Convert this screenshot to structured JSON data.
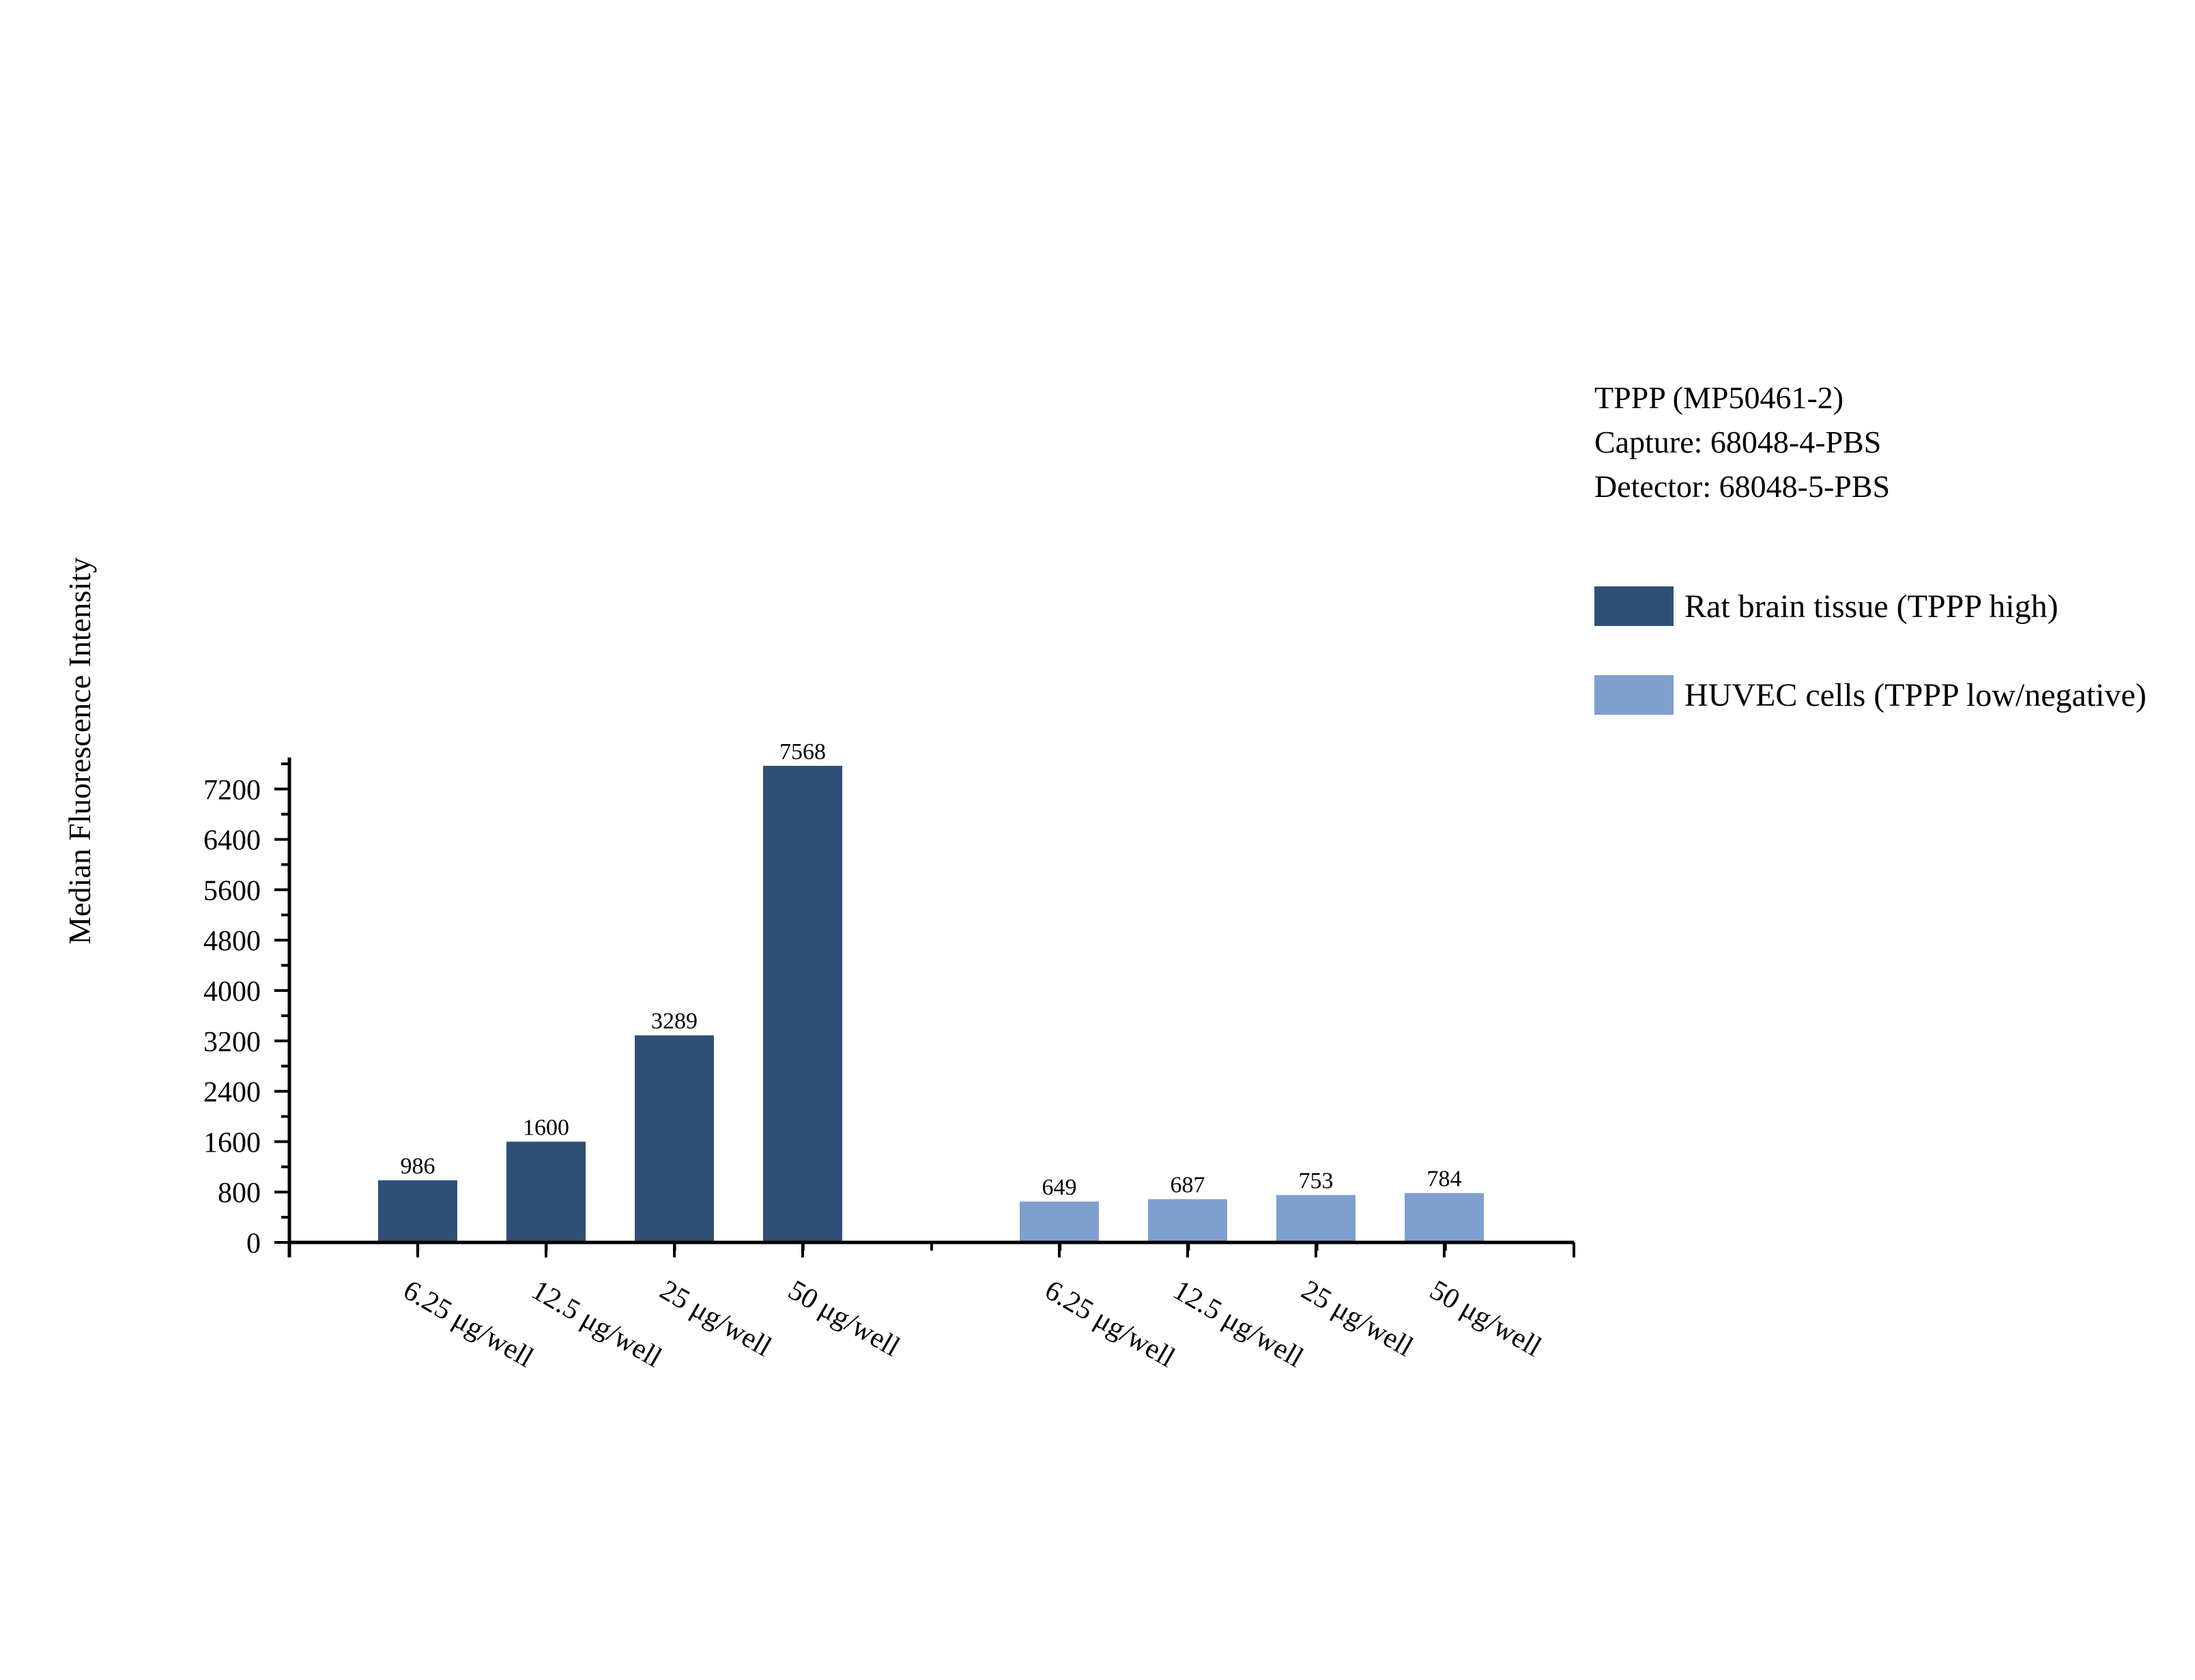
{
  "chart_data": {
    "type": "bar",
    "title": "",
    "xlabel": "",
    "ylabel": "Median Fluorescence Intensity",
    "ylim": [
      0,
      7700
    ],
    "yticks": [
      0,
      800,
      1600,
      2400,
      3200,
      4000,
      4800,
      5600,
      6400,
      7200
    ],
    "grid": false,
    "legend_position": "right",
    "groups": [
      {
        "series": "Rat brain tissue (TPPP high)",
        "color": "#2f4f77",
        "categories": [
          "6.25 μg/well",
          "12.5 μg/well",
          "25 μg/well",
          "50 μg/well"
        ],
        "values": [
          986,
          1600,
          3289,
          7568
        ]
      },
      {
        "series": "HUVEC cells (TPPP low/negative)",
        "color": "#7f9fcf",
        "categories": [
          "6.25 μg/well",
          "12.5 μg/well",
          "25 μg/well",
          "50 μg/well"
        ],
        "values": [
          649,
          687,
          753,
          784
        ]
      }
    ],
    "info_text": [
      "TPPP (MP50461-2)",
      "Capture: 68048-4-PBS",
      "Detector: 68048-5-PBS"
    ]
  }
}
